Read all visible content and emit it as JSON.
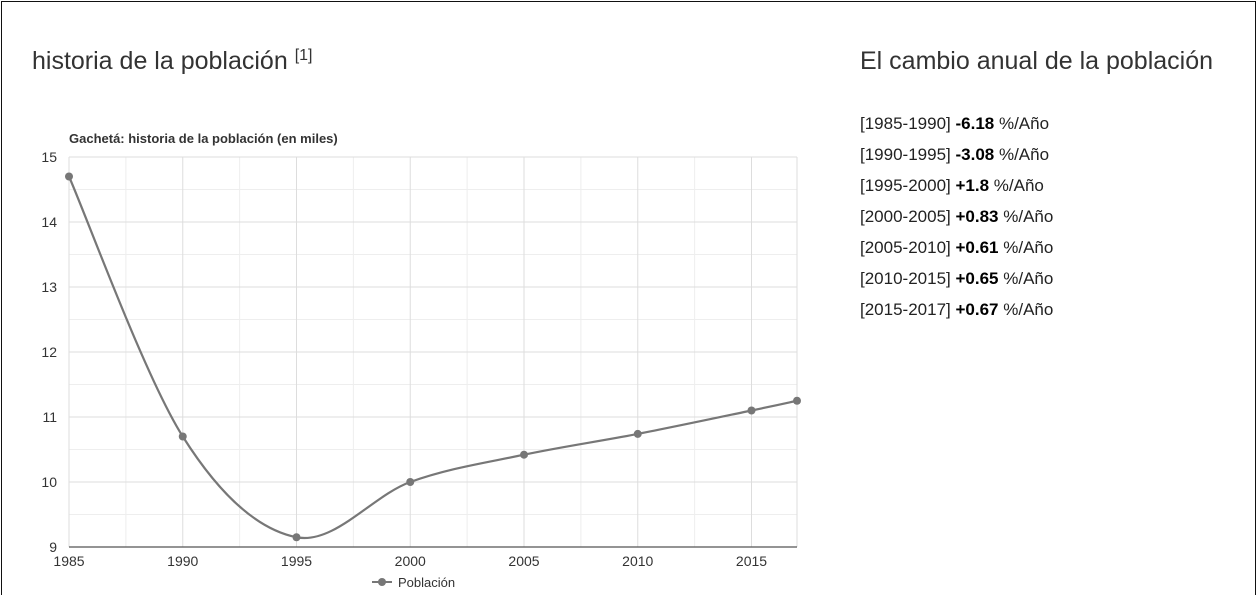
{
  "left_heading": {
    "text": "historia de la población",
    "ref": "[1]"
  },
  "right_heading": "El cambio anual de la población",
  "annual_changes": [
    {
      "period": "[1985-1990]",
      "value": "-6.18",
      "unit": "%/Año"
    },
    {
      "period": "[1990-1995]",
      "value": "-3.08",
      "unit": "%/Año"
    },
    {
      "period": "[1995-2000]",
      "value": "+1.8",
      "unit": "%/Año"
    },
    {
      "period": "[2000-2005]",
      "value": "+0.83",
      "unit": "%/Año"
    },
    {
      "period": "[2005-2010]",
      "value": "+0.61",
      "unit": "%/Año"
    },
    {
      "period": "[2010-2015]",
      "value": "+0.65",
      "unit": "%/Año"
    },
    {
      "period": "[2015-2017]",
      "value": "+0.67",
      "unit": "%/Año"
    }
  ],
  "chart_data": {
    "type": "line",
    "title": "Gachetá: historia de la población (en miles)",
    "xlabel": "",
    "ylabel": "",
    "x": [
      1985,
      1990,
      1995,
      2000,
      2005,
      2010,
      2015,
      2017
    ],
    "series": [
      {
        "name": "Población",
        "values": [
          14.7,
          10.7,
          9.15,
          10.0,
          10.42,
          10.74,
          11.1,
          11.25
        ]
      }
    ],
    "xlim": [
      1985,
      2017
    ],
    "ylim": [
      9,
      15
    ],
    "xticks": [
      1985,
      1990,
      1995,
      2000,
      2005,
      2010,
      2015
    ],
    "yticks": [
      9,
      10,
      11,
      12,
      13,
      14,
      15
    ],
    "grid": true,
    "legend": "bottom",
    "colors": {
      "line": "#777777",
      "grid": "#dddddd",
      "text": "#333333"
    }
  }
}
